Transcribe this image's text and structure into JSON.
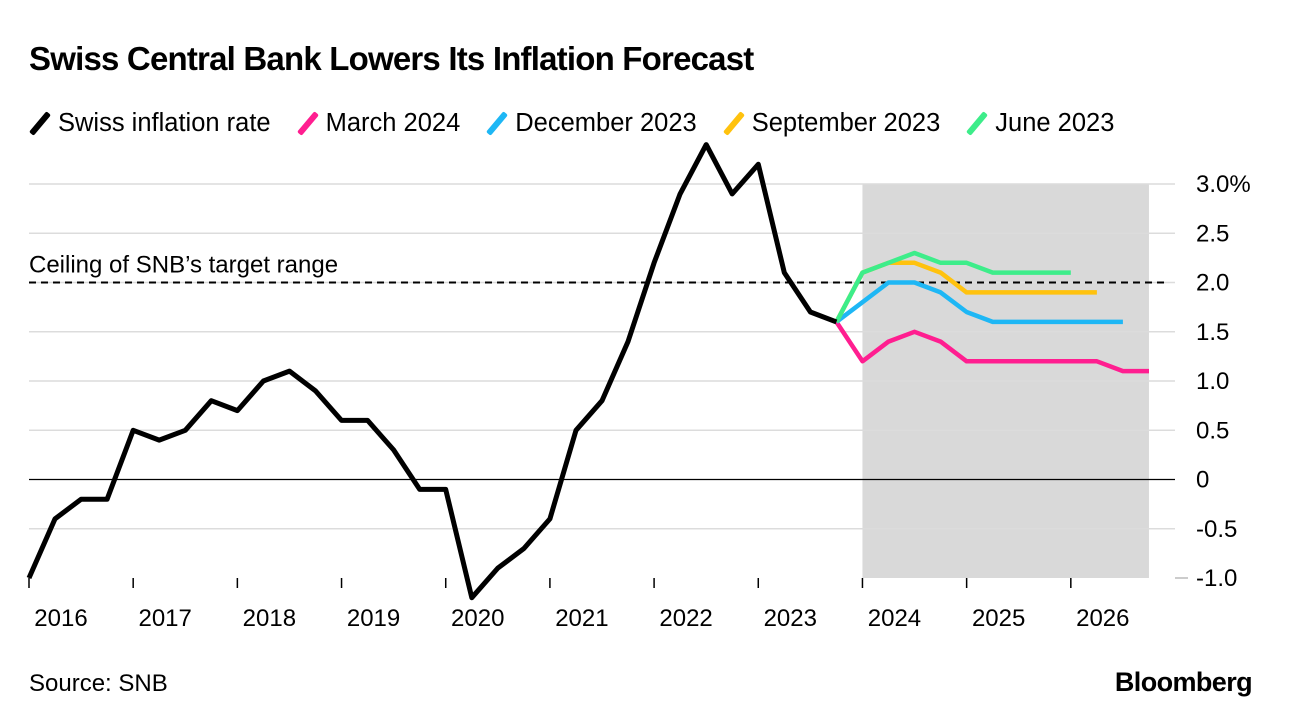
{
  "title": "Swiss Central Bank Lowers Its Inflation Forecast",
  "source": "Source: SNB",
  "brand": "Bloomberg",
  "chart_data": {
    "type": "line",
    "title": "Swiss Central Bank Lowers Its Inflation Forecast",
    "xlabel": "",
    "ylabel": "",
    "x_ticks": [
      "2016",
      "2017",
      "2018",
      "2019",
      "2020",
      "2021",
      "2022",
      "2023",
      "2024",
      "2025",
      "2026"
    ],
    "y_ticks": [
      {
        "value": 3.0,
        "label": "3.0%"
      },
      {
        "value": 2.5,
        "label": "2.5"
      },
      {
        "value": 2.0,
        "label": "2.0"
      },
      {
        "value": 1.5,
        "label": "1.5"
      },
      {
        "value": 1.0,
        "label": "1.0"
      },
      {
        "value": 0.5,
        "label": "0.5"
      },
      {
        "value": 0.0,
        "label": "0"
      },
      {
        "value": -0.5,
        "label": "-0.5"
      },
      {
        "value": -1.0,
        "label": "-1.0"
      }
    ],
    "xlim": [
      2016,
      2027
    ],
    "ylim": [
      -1.0,
      3.0
    ],
    "grid": true,
    "legend_position": "top",
    "forecast_region": {
      "start": 2024,
      "end": 2026.75,
      "color": "#d9d9d9"
    },
    "reference_line": {
      "value": 2.0,
      "label": "Ceiling of SNB’s target range",
      "style": "dashed"
    },
    "series": [
      {
        "name": "Swiss inflation rate",
        "color": "#000000",
        "x": [
          2016,
          2016.25,
          2016.5,
          2016.75,
          2017,
          2017.25,
          2017.5,
          2017.75,
          2018,
          2018.25,
          2018.5,
          2018.75,
          2019,
          2019.25,
          2019.5,
          2019.75,
          2020,
          2020.25,
          2020.5,
          2020.75,
          2021,
          2021.25,
          2021.5,
          2021.75,
          2022,
          2022.25,
          2022.5,
          2022.75,
          2023,
          2023.25,
          2023.5,
          2023.75
        ],
        "values": [
          -1.0,
          -0.4,
          -0.2,
          -0.2,
          0.5,
          0.4,
          0.5,
          0.8,
          0.7,
          1.0,
          1.1,
          0.9,
          0.6,
          0.6,
          0.3,
          -0.1,
          -0.1,
          -1.2,
          -0.9,
          -0.7,
          -0.4,
          0.5,
          0.8,
          1.4,
          2.2,
          2.9,
          3.4,
          2.9,
          3.2,
          2.1,
          1.7,
          1.6
        ]
      },
      {
        "name": "March 2024",
        "color": "#ff1e90",
        "x": [
          2023.75,
          2024,
          2024.25,
          2024.5,
          2024.75,
          2025,
          2025.25,
          2025.5,
          2025.75,
          2026,
          2026.25,
          2026.5,
          2026.75
        ],
        "values": [
          1.6,
          1.2,
          1.4,
          1.5,
          1.4,
          1.2,
          1.2,
          1.2,
          1.2,
          1.2,
          1.2,
          1.1,
          1.1
        ]
      },
      {
        "name": "December 2023",
        "color": "#1eb7f5",
        "x": [
          2023.75,
          2024,
          2024.25,
          2024.5,
          2024.75,
          2025,
          2025.25,
          2025.5,
          2025.75,
          2026,
          2026.25,
          2026.5
        ],
        "values": [
          1.6,
          1.8,
          2.0,
          2.0,
          1.9,
          1.7,
          1.6,
          1.6,
          1.6,
          1.6,
          1.6,
          1.6
        ]
      },
      {
        "name": "September 2023",
        "color": "#ffc20e",
        "x": [
          2023.75,
          2024,
          2024.25,
          2024.5,
          2024.75,
          2025,
          2025.25,
          2025.5,
          2025.75,
          2026,
          2026.25
        ],
        "values": [
          1.6,
          2.1,
          2.2,
          2.2,
          2.1,
          1.9,
          1.9,
          1.9,
          1.9,
          1.9,
          1.9
        ]
      },
      {
        "name": "June 2023",
        "color": "#3ded8a",
        "x": [
          2023.75,
          2024,
          2024.25,
          2024.5,
          2024.75,
          2025,
          2025.25,
          2025.5,
          2025.75,
          2026
        ],
        "values": [
          1.6,
          2.1,
          2.2,
          2.3,
          2.2,
          2.2,
          2.1,
          2.1,
          2.1,
          2.1
        ]
      }
    ]
  }
}
